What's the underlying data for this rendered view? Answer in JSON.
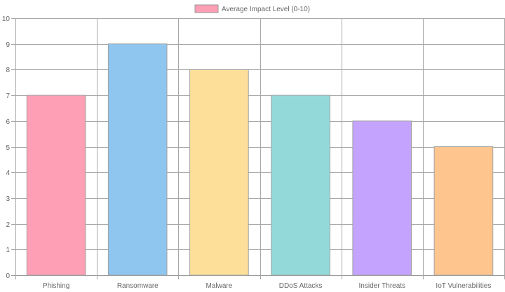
{
  "chart_data": {
    "type": "bar",
    "title": "",
    "xlabel": "",
    "ylabel": "",
    "categories": [
      "Phishing",
      "Ransomware",
      "Malware",
      "DDoS Attacks",
      "Insider Threats",
      "IoT Vulnerabilities"
    ],
    "series": [
      {
        "name": "Average Impact Level (0-10)",
        "values": [
          7,
          9,
          8,
          7,
          6,
          5
        ]
      }
    ],
    "bar_colors": [
      "#ff9fb5",
      "#8ec6f0",
      "#fddf99",
      "#93d9d9",
      "#c4a3ff",
      "#ffc58f"
    ],
    "legend_swatch_color": "#ff9fb5",
    "legend_position": "top-center",
    "ylim": [
      0,
      10
    ],
    "yticks": [
      0,
      1,
      2,
      3,
      4,
      5,
      6,
      7,
      8,
      9,
      10
    ],
    "grid": true
  }
}
